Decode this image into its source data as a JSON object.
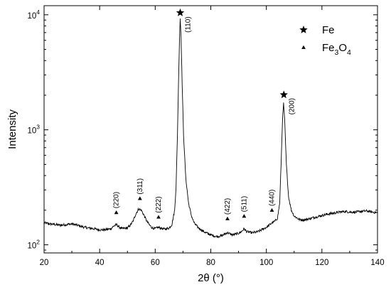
{
  "chart_data": {
    "type": "line",
    "title": "",
    "xlabel": "2θ (°)",
    "ylabel": "Intensity",
    "xlim": [
      20,
      140
    ],
    "ylim": [
      85,
      12000
    ],
    "yscale": "log",
    "grid": false,
    "legend_position": "top-right",
    "x_ticks": [
      20,
      40,
      60,
      80,
      100,
      120,
      140
    ],
    "x_tick_labels": [
      "20",
      "40",
      "60",
      "80",
      "100",
      "120",
      "140"
    ],
    "y_ticks": [
      100,
      1000,
      10000
    ],
    "y_tick_labels": [
      "10²",
      "10³",
      "10⁴"
    ],
    "y_tick_base": [
      "10",
      "10",
      "10"
    ],
    "y_tick_exp": [
      "2",
      "3",
      "4"
    ],
    "series": [
      {
        "name": "",
        "color": "#000000",
        "points": [
          [
            20,
            155
          ],
          [
            22,
            152
          ],
          [
            24,
            150
          ],
          [
            26,
            148
          ],
          [
            28,
            150
          ],
          [
            30,
            152
          ],
          [
            32,
            148
          ],
          [
            34,
            143
          ],
          [
            36,
            140
          ],
          [
            38,
            138
          ],
          [
            40,
            135
          ],
          [
            42,
            135
          ],
          [
            44,
            138
          ],
          [
            45,
            145
          ],
          [
            46,
            150
          ],
          [
            47,
            143
          ],
          [
            48,
            138
          ],
          [
            50,
            140
          ],
          [
            51,
            148
          ],
          [
            52,
            160
          ],
          [
            53,
            185
          ],
          [
            54,
            205
          ],
          [
            55,
            200
          ],
          [
            56,
            180
          ],
          [
            57,
            160
          ],
          [
            58,
            148
          ],
          [
            59,
            140
          ],
          [
            60,
            138
          ],
          [
            61,
            142
          ],
          [
            62,
            140
          ],
          [
            63,
            137
          ],
          [
            64,
            138
          ],
          [
            65,
            140
          ],
          [
            66,
            150
          ],
          [
            67,
            200
          ],
          [
            67.5,
            320
          ],
          [
            68,
            900
          ],
          [
            68.5,
            3500
          ],
          [
            68.8,
            7000
          ],
          [
            69,
            9300
          ],
          [
            69.3,
            6500
          ],
          [
            69.7,
            2500
          ],
          [
            70.2,
            900
          ],
          [
            71,
            380
          ],
          [
            72,
            230
          ],
          [
            73,
            180
          ],
          [
            74,
            155
          ],
          [
            75,
            145
          ],
          [
            76,
            138
          ],
          [
            78,
            128
          ],
          [
            80,
            122
          ],
          [
            82,
            118
          ],
          [
            84,
            120
          ],
          [
            85,
            124
          ],
          [
            86,
            128
          ],
          [
            87,
            124
          ],
          [
            88,
            122
          ],
          [
            90,
            126
          ],
          [
            91,
            130
          ],
          [
            92,
            138
          ],
          [
            93,
            130
          ],
          [
            95,
            127
          ],
          [
            97,
            130
          ],
          [
            99,
            138
          ],
          [
            100,
            142
          ],
          [
            101,
            148
          ],
          [
            102,
            155
          ],
          [
            103,
            160
          ],
          [
            104,
            170
          ],
          [
            104.8,
            230
          ],
          [
            105.3,
            500
          ],
          [
            105.8,
            1200
          ],
          [
            106.2,
            1700
          ],
          [
            106.6,
            1200
          ],
          [
            107.2,
            500
          ],
          [
            108,
            260
          ],
          [
            109,
            200
          ],
          [
            110,
            178
          ],
          [
            112,
            165
          ],
          [
            114,
            165
          ],
          [
            116,
            170
          ],
          [
            118,
            175
          ],
          [
            120,
            180
          ],
          [
            122,
            185
          ],
          [
            124,
            188
          ],
          [
            126,
            192
          ],
          [
            128,
            195
          ],
          [
            130,
            193
          ],
          [
            132,
            192
          ],
          [
            134,
            195
          ],
          [
            136,
            197
          ],
          [
            138,
            193
          ],
          [
            140,
            190
          ]
        ]
      }
    ],
    "markers": [
      {
        "phase": "Fe",
        "symbol": "star",
        "x": 69,
        "y": 9300,
        "label": "(110)"
      },
      {
        "phase": "Fe",
        "symbol": "star",
        "x": 106.3,
        "y": 1800,
        "label": "(200)"
      },
      {
        "phase": "Fe3O4",
        "symbol": "triangle",
        "x": 46,
        "y": 170,
        "label": "(220)"
      },
      {
        "phase": "Fe3O4",
        "symbol": "triangle",
        "x": 54.5,
        "y": 225,
        "label": "(311)"
      },
      {
        "phase": "Fe3O4",
        "symbol": "triangle",
        "x": 61.2,
        "y": 155,
        "label": "(222)"
      },
      {
        "phase": "Fe3O4",
        "symbol": "triangle",
        "x": 86,
        "y": 150,
        "label": "(422)"
      },
      {
        "phase": "Fe3O4",
        "symbol": "triangle",
        "x": 92,
        "y": 158,
        "label": "(511)"
      },
      {
        "phase": "Fe3O4",
        "symbol": "triangle",
        "x": 102,
        "y": 178,
        "label": "(440)"
      }
    ],
    "legend": [
      {
        "symbol": "star",
        "label_main": "Fe",
        "label_parts": []
      },
      {
        "symbol": "triangle",
        "label_main": "",
        "label_parts": [
          {
            "text": "Fe",
            "sub": false
          },
          {
            "text": "3",
            "sub": true
          },
          {
            "text": "O",
            "sub": false
          },
          {
            "text": "4",
            "sub": true
          }
        ]
      }
    ]
  }
}
